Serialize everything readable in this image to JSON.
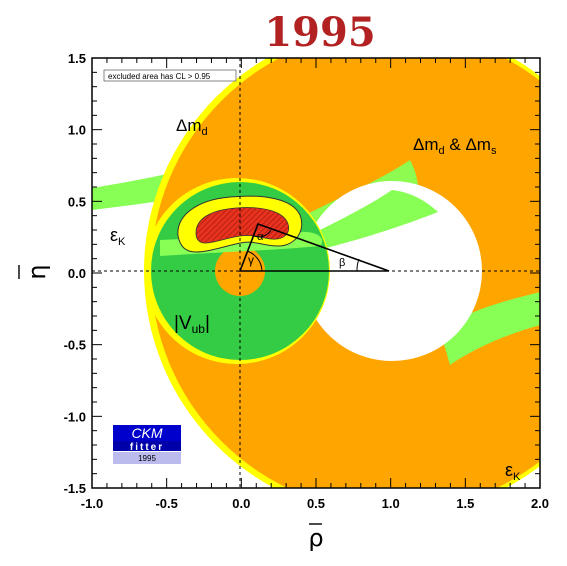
{
  "chart_data": {
    "type": "contour",
    "title": "1995",
    "xlabel": "ρ̄",
    "ylabel": "η̄",
    "xlim": [
      -1.0,
      2.0
    ],
    "ylim": [
      -1.5,
      1.5
    ],
    "x_ticks": [
      "-1.0",
      "-0.5",
      "0.0",
      "0.5",
      "1.0",
      "1.5",
      "2.0"
    ],
    "y_ticks": [
      "-1.5",
      "-1.0",
      "-0.5",
      "0.0",
      "0.5",
      "1.0",
      "1.5"
    ],
    "legend_note": "excluded area has CL > 0.95",
    "apex": {
      "rho": 0.12,
      "eta": 0.33
    },
    "constraints": [
      {
        "name": "Δmd",
        "color": "#ffa500",
        "shape": "ring",
        "center": [
          1.0,
          0.0
        ],
        "r_inner": 0.6,
        "r_outer": 1.62,
        "label": "Δmd",
        "label_pos": [
          -0.22,
          1.02
        ]
      },
      {
        "name": "Δmd & Δms",
        "color": "#ffa500",
        "label": "Δmd & Δms",
        "label_pos": [
          1.12,
          0.83
        ]
      },
      {
        "name": "|Vub|",
        "color": "#33cc44",
        "shape": "ring",
        "center": [
          0.0,
          0.0
        ],
        "r_inner": 0.17,
        "r_outer": 0.6,
        "label": "|Vub|",
        "label_pos": [
          -0.22,
          -0.36
        ]
      },
      {
        "name": "εK",
        "color": "#88ff55",
        "label": "εK",
        "label_pos": [
          -0.88,
          0.22
        ],
        "label2_pos": [
          1.85,
          -1.38
        ]
      }
    ],
    "angles": {
      "alpha": "α",
      "beta": "β",
      "gamma": "γ"
    },
    "logo": {
      "line1": "CKM",
      "line2": "fitter",
      "line3": "1995"
    }
  }
}
